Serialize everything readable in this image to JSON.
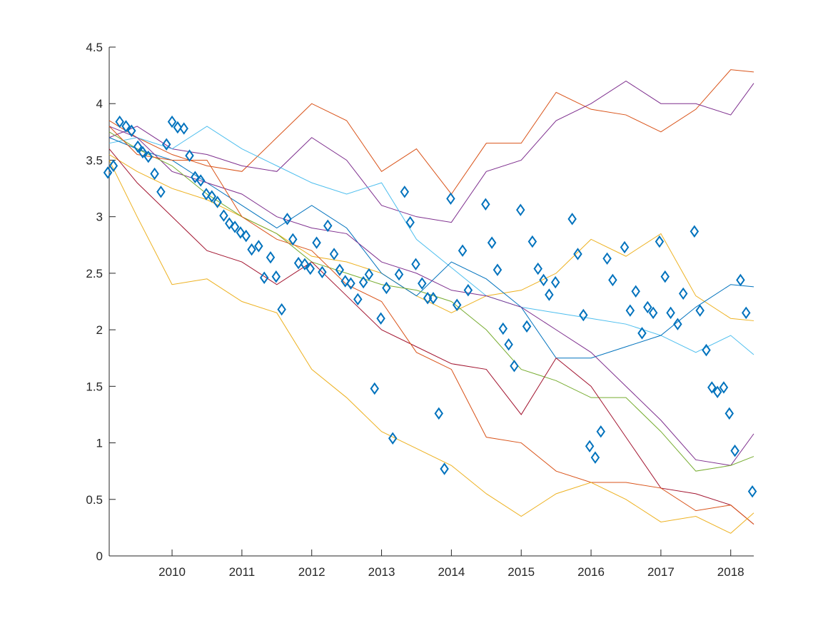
{
  "chart_data": {
    "type": "line",
    "x": [
      2009.1,
      2009.5,
      2010,
      2010.5,
      2011,
      2011.5,
      2012,
      2012.5,
      2013,
      2013.5,
      2014,
      2014.5,
      2015,
      2015.5,
      2016,
      2016.5,
      2017,
      2017.5,
      2018,
      2018.33
    ],
    "xlim": [
      2009.1,
      2018.33
    ],
    "xticks": [
      2010,
      2011,
      2012,
      2013,
      2014,
      2015,
      2016,
      2017,
      2018
    ],
    "ylim": [
      0,
      4.5
    ],
    "yticks": [
      0,
      0.5,
      1,
      1.5,
      2,
      2.5,
      3,
      3.5,
      4,
      4.5
    ],
    "series": [
      {
        "color": "#D95319",
        "values": [
          3.85,
          3.7,
          3.55,
          3.45,
          3.4,
          3.7,
          4.0,
          3.85,
          3.4,
          3.6,
          3.2,
          3.65,
          3.65,
          4.1,
          3.95,
          3.9,
          3.75,
          3.95,
          4.3,
          4.28
        ]
      },
      {
        "color": "#7E2F8E",
        "values": [
          3.7,
          3.8,
          3.6,
          3.55,
          3.45,
          3.4,
          3.7,
          3.5,
          3.1,
          3.0,
          2.95,
          3.4,
          3.5,
          3.85,
          4.0,
          4.2,
          4.0,
          4.0,
          3.9,
          4.18
        ]
      },
      {
        "color": "#4DBEEE",
        "values": [
          3.65,
          3.7,
          3.6,
          3.8,
          3.6,
          3.45,
          3.3,
          3.2,
          3.3,
          2.8,
          2.55,
          2.3,
          2.2,
          2.15,
          2.1,
          2.05,
          1.95,
          1.8,
          1.95,
          1.78
        ]
      },
      {
        "color": "#EDB120",
        "values": [
          3.55,
          3.4,
          3.25,
          3.15,
          3.0,
          2.85,
          2.65,
          2.6,
          2.5,
          2.3,
          2.15,
          2.3,
          2.35,
          2.5,
          2.8,
          2.65,
          2.85,
          2.3,
          2.1,
          2.08
        ]
      },
      {
        "color": "#0072BD",
        "values": [
          3.7,
          3.6,
          3.5,
          3.3,
          3.1,
          2.9,
          3.1,
          2.9,
          2.5,
          2.3,
          2.6,
          2.45,
          2.2,
          1.75,
          1.75,
          1.85,
          1.95,
          2.2,
          2.4,
          2.38
        ]
      },
      {
        "color": "#7E2F8E",
        "values": [
          3.8,
          3.7,
          3.4,
          3.3,
          3.2,
          3.0,
          2.9,
          2.85,
          2.6,
          2.5,
          2.35,
          2.3,
          2.2,
          2.0,
          1.8,
          1.5,
          1.2,
          0.85,
          0.8,
          1.08
        ]
      },
      {
        "color": "#77AC30",
        "values": [
          3.75,
          3.6,
          3.45,
          3.2,
          3.0,
          2.85,
          2.6,
          2.5,
          2.4,
          2.35,
          2.25,
          2.0,
          1.65,
          1.55,
          1.4,
          1.4,
          1.1,
          0.75,
          0.8,
          0.88
        ]
      },
      {
        "color": "#A2142F",
        "values": [
          3.6,
          3.3,
          3.0,
          2.7,
          2.6,
          2.4,
          2.6,
          2.3,
          2.0,
          1.85,
          1.7,
          1.65,
          1.25,
          1.75,
          1.5,
          1.05,
          0.6,
          0.55,
          0.45,
          0.28
        ]
      },
      {
        "color": "#D95319",
        "values": [
          3.8,
          3.55,
          3.5,
          3.5,
          3.0,
          2.8,
          2.7,
          2.4,
          2.25,
          1.8,
          1.65,
          1.05,
          1.0,
          0.75,
          0.65,
          0.65,
          0.6,
          0.4,
          0.45,
          0.28
        ]
      },
      {
        "color": "#EDB120",
        "values": [
          3.5,
          3.0,
          2.4,
          2.45,
          2.25,
          2.15,
          1.65,
          1.4,
          1.1,
          0.95,
          0.8,
          0.55,
          0.35,
          0.55,
          0.65,
          0.5,
          0.3,
          0.35,
          0.2,
          0.38
        ]
      }
    ],
    "scatter": {
      "color": "#0072BD",
      "marker": "diamond",
      "x": [
        2009.08,
        2009.16,
        2009.25,
        2009.34,
        2009.42,
        2009.51,
        2009.58,
        2009.66,
        2009.75,
        2009.84,
        2009.92,
        2010.0,
        2010.08,
        2010.17,
        2010.25,
        2010.33,
        2010.41,
        2010.49,
        2010.57,
        2010.65,
        2010.74,
        2010.82,
        2010.9,
        2010.98,
        2011.06,
        2011.14,
        2011.24,
        2011.32,
        2011.41,
        2011.49,
        2011.57,
        2011.65,
        2011.73,
        2011.81,
        2011.9,
        2011.98,
        2012.07,
        2012.15,
        2012.23,
        2012.32,
        2012.4,
        2012.48,
        2012.56,
        2012.66,
        2012.74,
        2012.82,
        2012.9,
        2012.99,
        2013.07,
        2013.16,
        2013.25,
        2013.33,
        2013.41,
        2013.49,
        2013.58,
        2013.66,
        2013.74,
        2013.82,
        2013.9,
        2013.99,
        2014.08,
        2014.16,
        2014.24,
        2014.49,
        2014.58,
        2014.66,
        2014.74,
        2014.82,
        2014.9,
        2014.99,
        2015.08,
        2015.16,
        2015.24,
        2015.32,
        2015.4,
        2015.49,
        2015.73,
        2015.81,
        2015.89,
        2015.98,
        2016.06,
        2016.14,
        2016.23,
        2016.31,
        2016.48,
        2016.56,
        2016.64,
        2016.73,
        2016.81,
        2016.89,
        2016.98,
        2017.06,
        2017.14,
        2017.24,
        2017.32,
        2017.48,
        2017.56,
        2017.65,
        2017.73,
        2017.81,
        2017.9,
        2017.98,
        2018.06,
        2018.14,
        2018.22,
        2018.31
      ],
      "values": [
        3.39,
        3.45,
        3.84,
        3.8,
        3.76,
        3.62,
        3.57,
        3.53,
        3.38,
        3.22,
        3.64,
        3.84,
        3.79,
        3.78,
        3.54,
        3.35,
        3.32,
        3.2,
        3.18,
        3.13,
        3.01,
        2.94,
        2.91,
        2.86,
        2.83,
        2.71,
        2.74,
        2.46,
        2.64,
        2.47,
        2.18,
        2.98,
        2.8,
        2.59,
        2.58,
        2.54,
        2.77,
        2.51,
        2.92,
        2.67,
        2.53,
        2.43,
        2.41,
        2.27,
        2.42,
        2.49,
        1.48,
        2.1,
        2.37,
        1.04,
        2.49,
        3.22,
        2.95,
        2.58,
        2.41,
        2.28,
        2.28,
        1.26,
        0.77,
        3.16,
        2.22,
        2.7,
        2.35,
        3.11,
        2.77,
        2.53,
        2.01,
        1.87,
        1.68,
        3.06,
        2.03,
        2.78,
        2.54,
        2.44,
        2.31,
        2.42,
        2.98,
        2.67,
        2.13,
        0.97,
        0.87,
        1.1,
        2.63,
        2.44,
        2.73,
        2.17,
        2.34,
        1.97,
        2.2,
        2.15,
        2.78,
        2.47,
        2.15,
        2.05,
        2.32,
        2.87,
        2.17,
        1.82,
        1.49,
        1.45,
        1.49,
        1.26,
        0.93,
        2.44,
        2.15,
        0.57
      ]
    }
  }
}
